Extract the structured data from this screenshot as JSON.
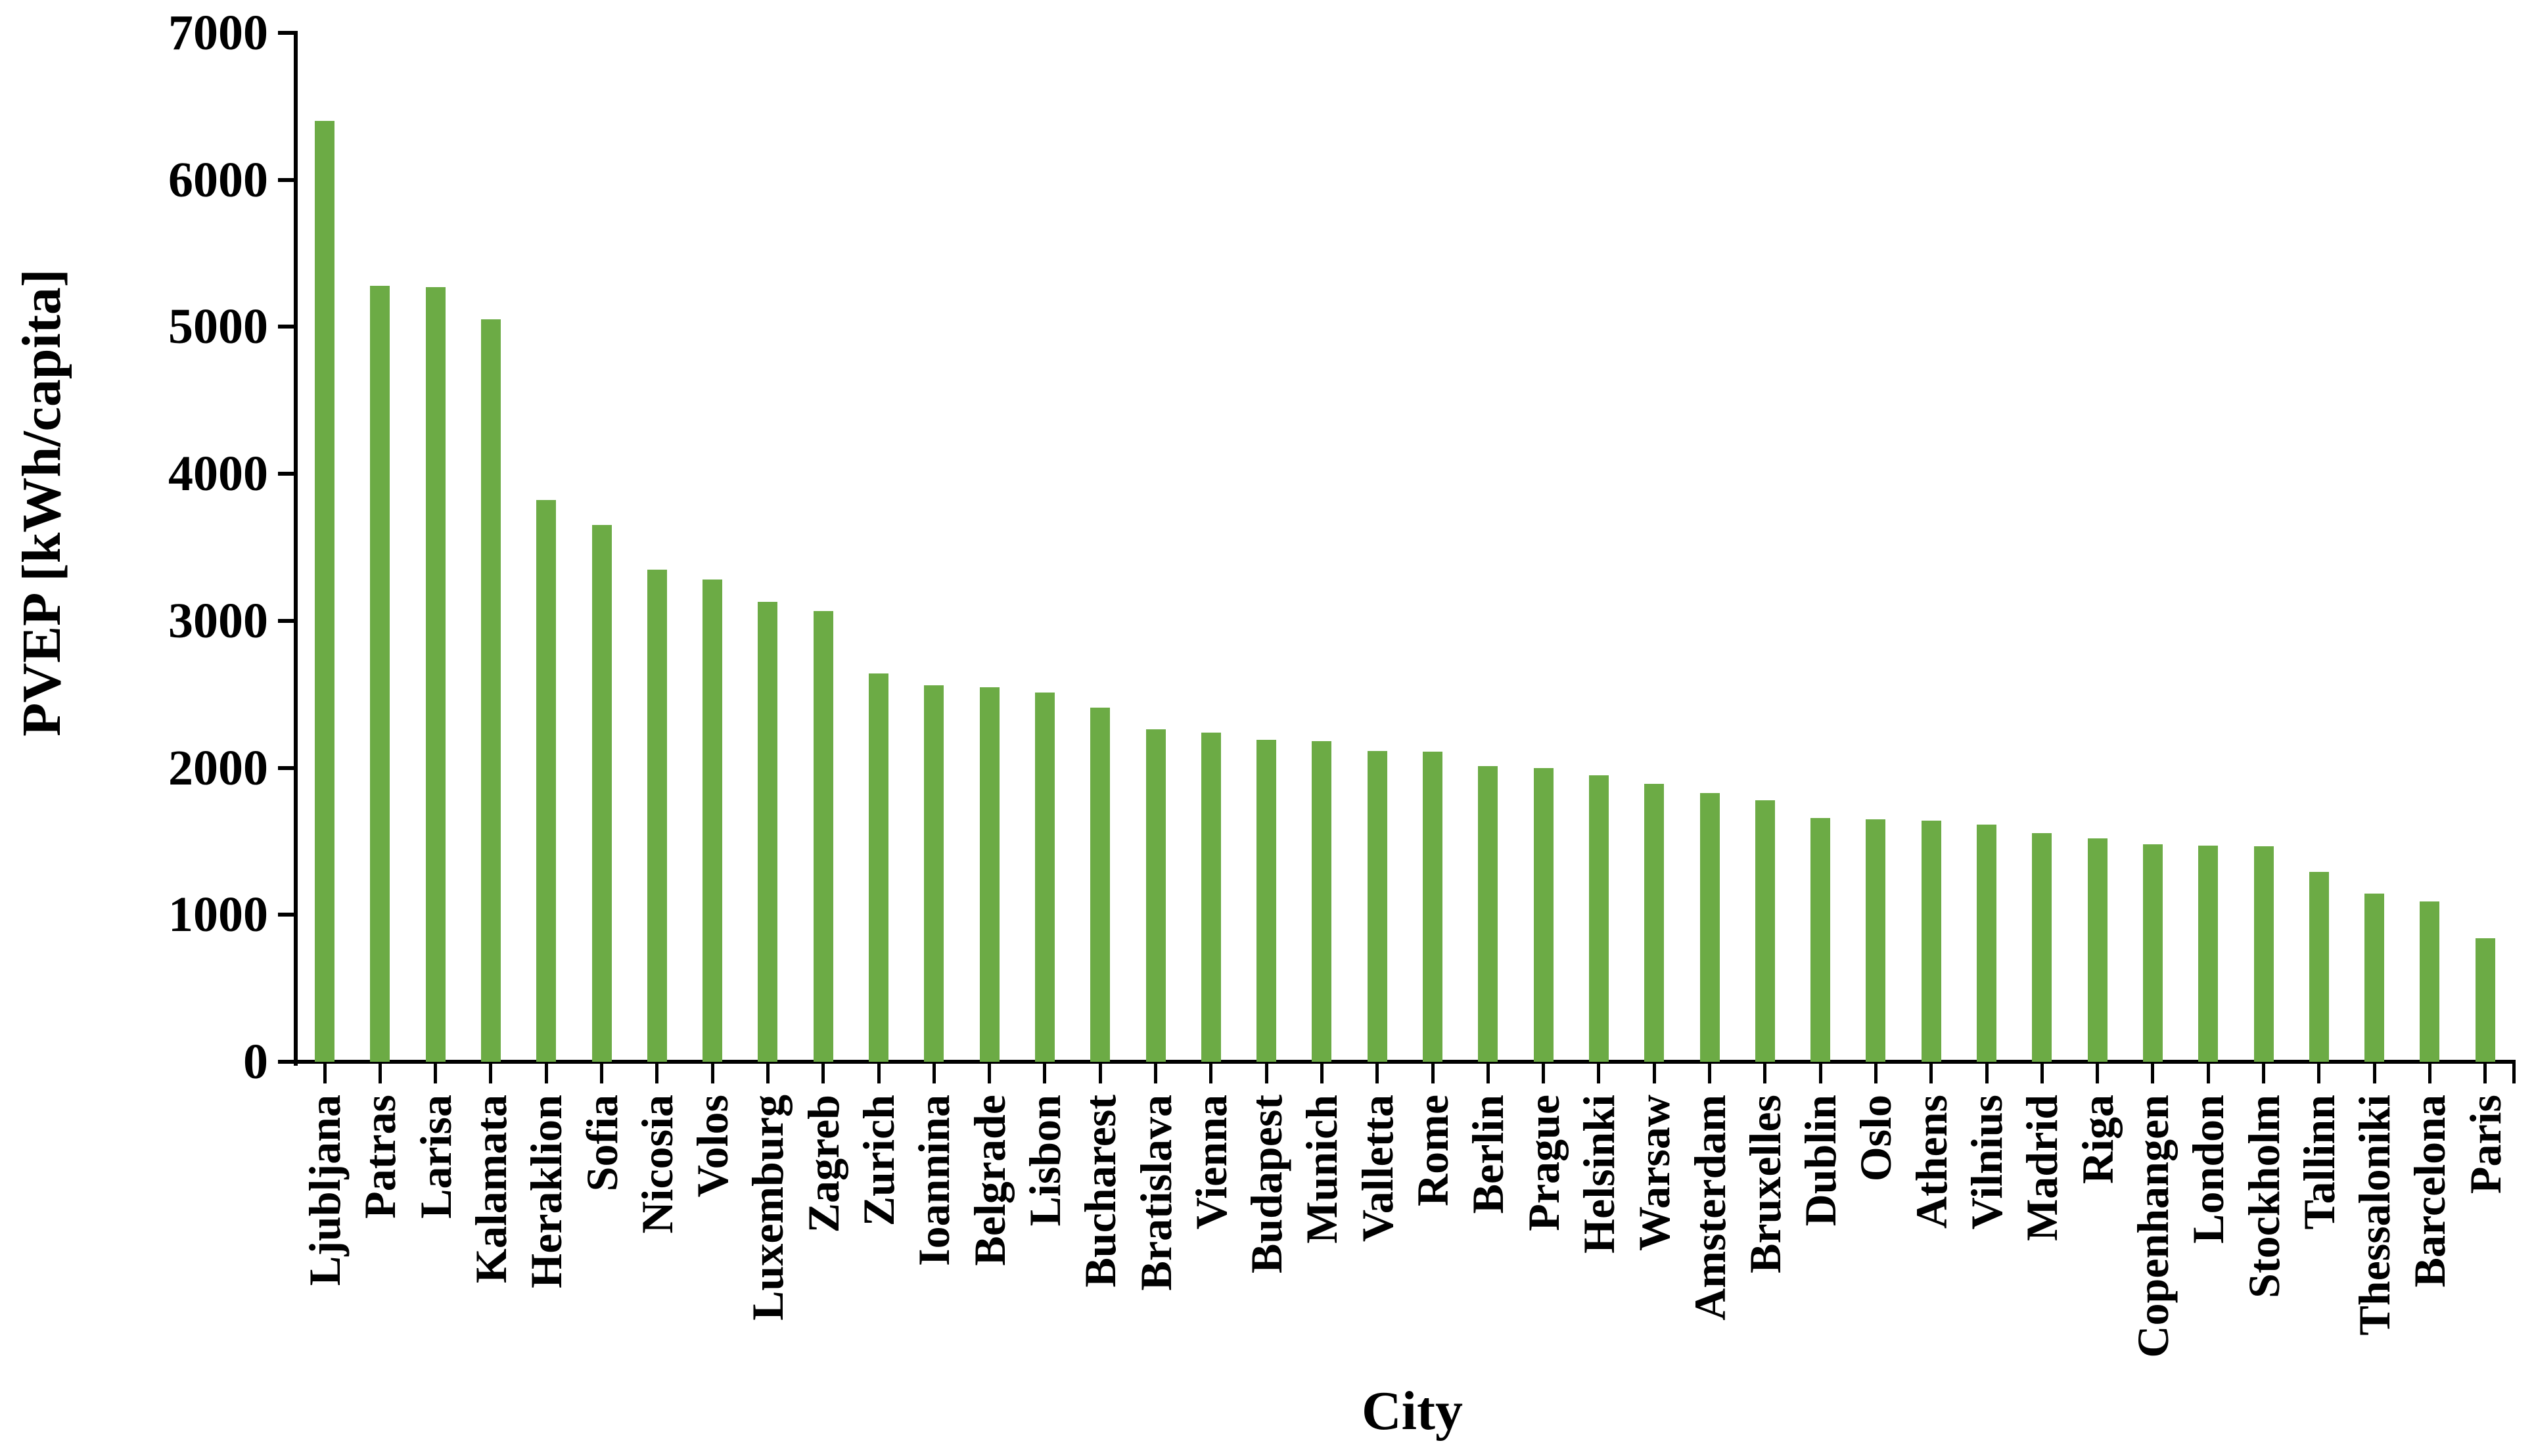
{
  "page": {
    "background_color": "#ffffff",
    "text_color": "#000000",
    "axis_color": "#000000"
  },
  "chart_data": {
    "type": "bar",
    "title": "",
    "xlabel": "City",
    "ylabel": "PVEP [kWh/capita]",
    "ylim": [
      0,
      7000
    ],
    "y_tick_step": 1000,
    "y_ticks": [
      0,
      1000,
      2000,
      3000,
      4000,
      5000,
      6000,
      7000
    ],
    "grid": false,
    "legend": "none",
    "bar_color": "#6CAB45",
    "categories": [
      "Ljubljana",
      "Patras",
      "Larisa",
      "Kalamata",
      "Heraklion",
      "Sofia",
      "Nicosia",
      "Volos",
      "Luxemburg",
      "Zagreb",
      "Zurich",
      "Ioannina",
      "Belgrade",
      "Lisbon",
      "Bucharest",
      "Bratislava",
      "Vienna",
      "Budapest",
      "Munich",
      "Valletta",
      "Rome",
      "Berlin",
      "Prague",
      "Helsinki",
      "Warsaw",
      "Amsterdam",
      "Bruxelles",
      "Dublin",
      "Oslo",
      "Athens",
      "Vilnius",
      "Madrid",
      "Riga",
      "Copenhangen",
      "London",
      "Stockholm",
      "Tallinn",
      "Thessaloniki",
      "Barcelona",
      "Paris"
    ],
    "values": [
      6400,
      5280,
      5270,
      5050,
      3820,
      3650,
      3350,
      3280,
      3130,
      3065,
      2640,
      2560,
      2550,
      2510,
      2410,
      2260,
      2240,
      2190,
      2180,
      2115,
      2110,
      2010,
      2000,
      1950,
      1890,
      1830,
      1780,
      1660,
      1650,
      1640,
      1615,
      1555,
      1520,
      1480,
      1472,
      1465,
      1290,
      1145,
      1090,
      840
    ]
  }
}
